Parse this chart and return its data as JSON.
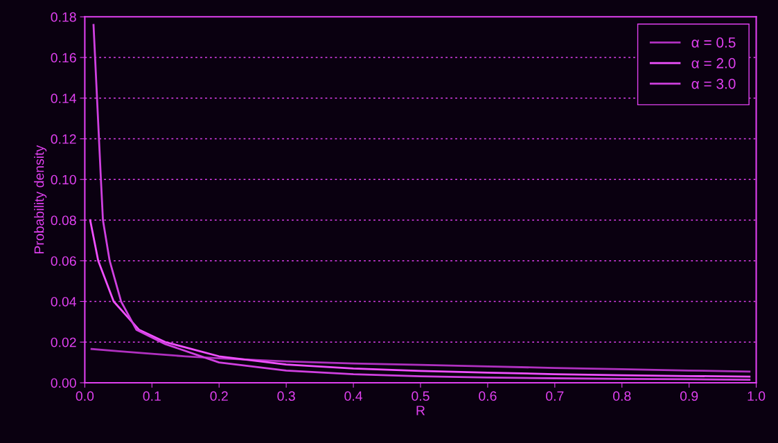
{
  "chart_data": {
    "type": "line",
    "xlabel": "R",
    "ylabel": "Probability density",
    "xlim": [
      0,
      1.0
    ],
    "xticks": [
      {
        "value": 0,
        "label": "0.0"
      },
      0.1,
      0.2,
      0.3,
      0.4,
      0.5,
      0.6,
      0.7,
      0.8,
      0.9,
      {
        "value": 1.0,
        "label": "1.0"
      }
    ],
    "ylim": [
      0,
      0.18
    ],
    "yticks": [
      {
        "value": 0,
        "label": "0.00"
      },
      0.02,
      0.04,
      0.06,
      0.08,
      {
        "value": 0.1,
        "label": "0.10"
      },
      0.12,
      0.14,
      0.16,
      0.18
    ],
    "grid": "y",
    "legend": "top right",
    "marker": "none",
    "line_style": "solid",
    "series": [
      {
        "name": "α = 0.5",
        "color": "#b030c0",
        "x": [
          0.01,
          0.05,
          0.09,
          0.15,
          0.2,
          0.3,
          0.4,
          0.5,
          0.6,
          0.7,
          0.8,
          0.9,
          0.99
        ],
        "values": [
          0.0166,
          0.0155,
          0.0145,
          0.013,
          0.012,
          0.0105,
          0.0095,
          0.0088,
          0.008,
          0.0073,
          0.0067,
          0.006,
          0.0055
        ]
      },
      {
        "name": "α = 2.0",
        "color": "#f050ff",
        "x": [
          0.008,
          0.02,
          0.043,
          0.081,
          0.12,
          0.2,
          0.3,
          0.4,
          0.5,
          0.6,
          0.7,
          0.8,
          0.9,
          0.99
        ],
        "values": [
          0.08,
          0.06,
          0.04,
          0.026,
          0.02,
          0.013,
          0.009,
          0.007,
          0.0058,
          0.005,
          0.0042,
          0.0037,
          0.0033,
          0.003
        ]
      },
      {
        "name": "α = 3.0",
        "color": "#d040e0",
        "x": [
          0.013,
          0.024,
          0.027,
          0.037,
          0.054,
          0.077,
          0.12,
          0.2,
          0.3,
          0.4,
          0.5,
          0.6,
          0.7,
          0.8,
          0.9,
          0.99
        ],
        "values": [
          0.176,
          0.1,
          0.08,
          0.06,
          0.04,
          0.026,
          0.019,
          0.01,
          0.006,
          0.0042,
          0.0032,
          0.0026,
          0.0022,
          0.0019,
          0.0017,
          0.0015
        ]
      }
    ]
  }
}
